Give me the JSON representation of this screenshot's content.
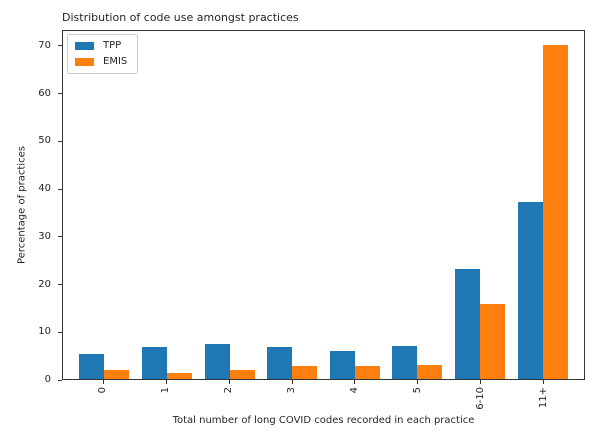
{
  "chart_data": {
    "type": "bar",
    "title": "Distribution of code use amongst practices",
    "xlabel": "Total number of long COVID codes recorded in each practice",
    "ylabel": "Percentage of practices",
    "categories": [
      "0",
      "1",
      "2",
      "3",
      "4",
      "5",
      "6-10",
      "11+"
    ],
    "series": [
      {
        "name": "TPP",
        "color": "#1f77b4",
        "values": [
          5.3,
          6.8,
          7.4,
          6.8,
          6.0,
          6.9,
          23.2,
          37.3
        ]
      },
      {
        "name": "EMIS",
        "color": "#ff7f0e",
        "values": [
          2.0,
          1.3,
          2.0,
          2.8,
          2.8,
          3.0,
          15.7,
          70.3
        ]
      }
    ],
    "ylim": [
      0,
      73.3
    ],
    "yticks": [
      0,
      10,
      20,
      30,
      40,
      50,
      60,
      70
    ],
    "grid": false,
    "legend_position": "upper-left",
    "spine_color": "#343434",
    "background_color": "#ffffff"
  }
}
